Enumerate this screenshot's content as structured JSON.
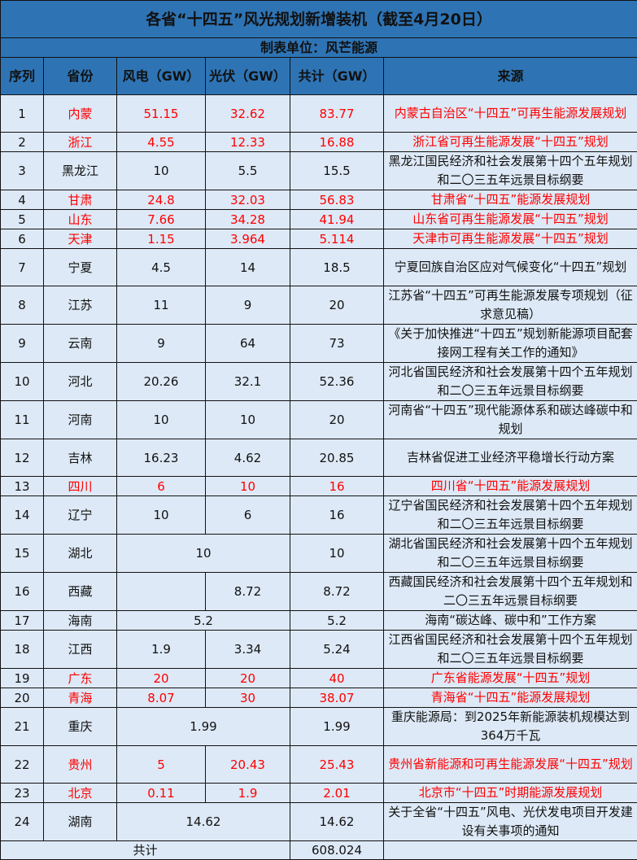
{
  "title": "各省“十四五”风光规划新增装机（截至4月20日）",
  "subtitle": "制表单位：风芒能源",
  "columns": [
    "序列",
    "省份",
    "风电（GW）",
    "光伏（GW）",
    "共计（GW）",
    "来源"
  ],
  "highlight_color": "#ff0000",
  "header_color": "#2e74b5",
  "row_color": "#dde9f6",
  "rows": [
    {
      "no": "1",
      "province": "内蒙",
      "wind": "51.15",
      "solar": "32.62",
      "total": "83.77",
      "source": "内蒙古自治区“十四五”可再生能源发展规划",
      "red": true,
      "tall": true
    },
    {
      "no": "2",
      "province": "浙江",
      "wind": "4.55",
      "solar": "12.33",
      "total": "16.88",
      "source": "浙江省可再生能源发展“十四五”规划",
      "red": true
    },
    {
      "no": "3",
      "province": "黑龙江",
      "wind": "10",
      "solar": "5.5",
      "total": "15.5",
      "source": "黑龙江国民经济和社会发展第十四个五年规划和二〇三五年远景目标纲要",
      "tall": true
    },
    {
      "no": "4",
      "province": "甘肃",
      "wind": "24.8",
      "solar": "32.03",
      "total": "56.83",
      "source": "甘肃省“十四五”能源发展规划",
      "red": true
    },
    {
      "no": "5",
      "province": "山东",
      "wind": "7.66",
      "solar": "34.28",
      "total": "41.94",
      "source": "山东省可再生能源发展“十四五”规划",
      "red": true
    },
    {
      "no": "6",
      "province": "天津",
      "wind": "1.15",
      "solar": "3.964",
      "total": "5.114",
      "source": "天津市可再生能源发展“十四五”规划",
      "red": true
    },
    {
      "no": "7",
      "province": "宁夏",
      "wind": "4.5",
      "solar": "14",
      "total": "18.5",
      "source": "宁夏回族自治区应对气候变化“十四五”规划",
      "tall": true
    },
    {
      "no": "8",
      "province": "江苏",
      "wind": "11",
      "solar": "9",
      "total": "20",
      "source": "江苏省“十四五”可再生能源发展专项规划（征求意见稿）",
      "tall": true
    },
    {
      "no": "9",
      "province": "云南",
      "wind": "9",
      "solar": "64",
      "total": "73",
      "source": "《关于加快推进“十四五”规划新能源项目配套接网工程有关工作的通知》",
      "tall": true
    },
    {
      "no": "10",
      "province": "河北",
      "wind": "20.26",
      "solar": "32.1",
      "total": "52.36",
      "source": "河北省国民经济和社会发展第十四个五年规划和二〇三五年远景目标纲要",
      "tall": true
    },
    {
      "no": "11",
      "province": "河南",
      "wind": "10",
      "solar": "10",
      "total": "20",
      "source": "河南省“十四五”现代能源体系和碳达峰碳中和规划",
      "tall": true
    },
    {
      "no": "12",
      "province": "吉林",
      "wind": "16.23",
      "solar": "4.62",
      "total": "20.85",
      "source": "吉林省促进工业经济平稳增长行动方案",
      "tall": true
    },
    {
      "no": "13",
      "province": "四川",
      "wind": "6",
      "solar": "10",
      "total": "16",
      "source": "四川省“十四五”能源发展规划",
      "red": true
    },
    {
      "no": "14",
      "province": "辽宁",
      "wind": "10",
      "solar": "6",
      "total": "16",
      "source": "辽宁省国民经济和社会发展第十四个五年规划和二〇三五年远景目标纲要",
      "tall": true
    },
    {
      "no": "15",
      "province": "湖北",
      "combined": "10",
      "total": "10",
      "source": "湖北省国民经济和社会发展第十四个五年规划和二〇三五年远景目标纲要",
      "tall": true
    },
    {
      "no": "16",
      "province": "西藏",
      "wind": "",
      "solar": "8.72",
      "total": "8.72",
      "source": "西藏国民经济和社会发展第十四个五年规划和二〇三五年远景目标纲要",
      "tall": true
    },
    {
      "no": "17",
      "province": "海南",
      "combined": "5.2",
      "total": "5.2",
      "source": "海南“碳达峰、碳中和”工作方案"
    },
    {
      "no": "18",
      "province": "江西",
      "wind": "1.9",
      "solar": "3.34",
      "total": "5.24",
      "source": "江西省国民经济和社会发展第十四个五年规划和二〇三五年远景目标纲要",
      "tall": true
    },
    {
      "no": "19",
      "province": "广东",
      "wind": "20",
      "solar": "20",
      "total": "40",
      "source": "广东省能源发展“十四五”规划",
      "red": true
    },
    {
      "no": "20",
      "province": "青海",
      "wind": "8.07",
      "solar": "30",
      "total": "38.07",
      "source": "青海省“十四五”能源发展规划",
      "red": true
    },
    {
      "no": "21",
      "province": "重庆",
      "combined": "1.99",
      "total": "1.99",
      "source": "重庆能源局：到2025年新能源装机规模达到364万千瓦",
      "tall": true
    },
    {
      "no": "22",
      "province": "贵州",
      "wind": "5",
      "solar": "20.43",
      "total": "25.43",
      "source": "贵州省新能源和可再生能源发展“十四五”规划",
      "red": true,
      "tall": true
    },
    {
      "no": "23",
      "province": "北京",
      "wind": "0.11",
      "solar": "1.9",
      "total": "2.01",
      "source": "北京市“十四五”时期能源发展规划",
      "red": true
    },
    {
      "no": "24",
      "province": "湖南",
      "combined": "14.62",
      "total": "14.62",
      "source": "关于全省“十四五”风电、光伏发电项目开发建设有关事项的通知",
      "tall": true
    }
  ],
  "footer": {
    "label": "共计",
    "total": "608.024"
  }
}
